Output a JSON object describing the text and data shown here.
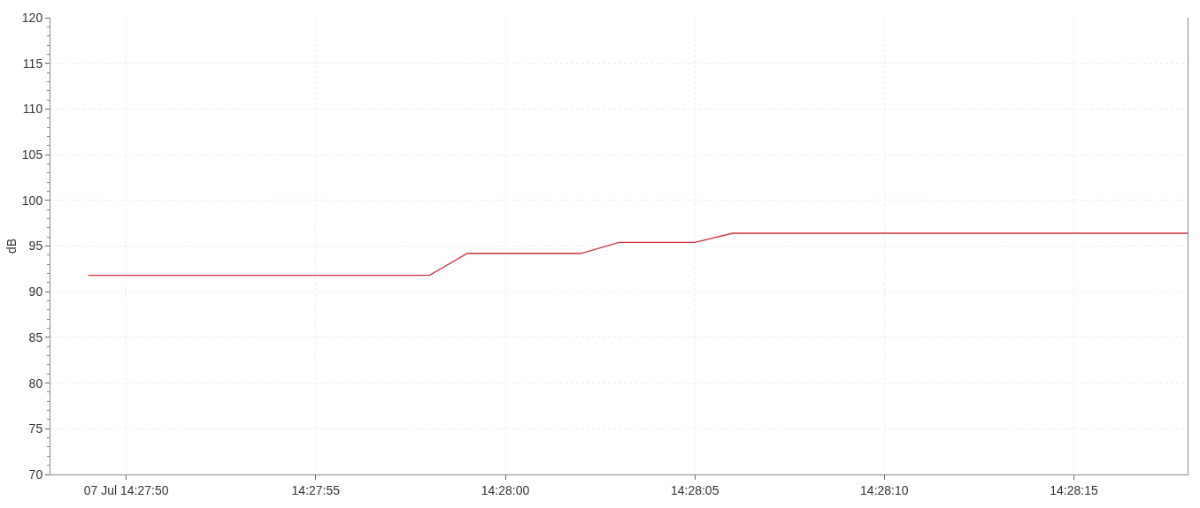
{
  "chart_data": {
    "type": "line",
    "ylabel": "dB",
    "x": [
      "--07-07T14:27:49",
      "--07-07T14:27:58",
      "--07-07T14:27:59",
      "--07-07T14:28:02",
      "--07-07T14:28:03",
      "--07-07T14:28:05",
      "--07-07T14:28:06",
      "--07-07T14:28:18"
    ],
    "series": [
      {
        "color": "#d0303a",
        "values": [
          91.8,
          91.8,
          94.2,
          94.2,
          95.4,
          95.4,
          96.4,
          96.4
        ]
      }
    ],
    "xlim": [
      "--07-07T14:27:48",
      "--07-07T14:28:18"
    ],
    "xticks": [
      {
        "value": "--07-07T14:27:50",
        "label": "07 Jul 14:27:50"
      },
      {
        "value": "--07-07T14:27:55",
        "label": "14:27:55"
      },
      {
        "value": "--07-07T14:28:00",
        "label": "14:28:00"
      },
      {
        "value": "--07-07T14:28:05",
        "label": "14:28:05"
      },
      {
        "value": "--07-07T14:28:10",
        "label": "14:28:10"
      },
      {
        "value": "--07-07T14:28:15",
        "label": "14:28:15"
      }
    ],
    "ylim": [
      70,
      120
    ],
    "yticks": [
      70,
      75,
      80,
      85,
      90,
      95,
      100,
      105,
      110,
      115,
      120
    ],
    "grid": true,
    "marker": "none",
    "line_style": "solid"
  }
}
